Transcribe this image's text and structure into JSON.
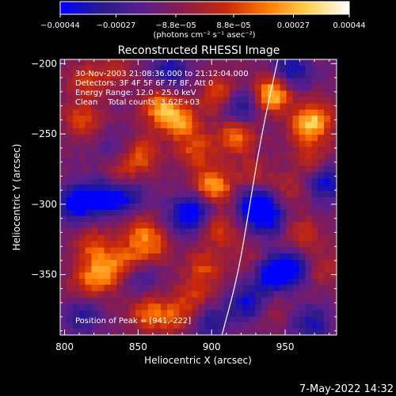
{
  "chart_data": {
    "type": "heatmap",
    "title": "Reconstructed RHESSI Image",
    "xlabel": "Heliocentric X (arcsec)",
    "ylabel": "Heliocentric Y (arcsec)",
    "xlim": [
      797,
      985
    ],
    "ylim": [
      -393,
      -197
    ],
    "xticks": [
      {
        "value": 800,
        "label": "800"
      },
      {
        "value": 850,
        "label": "850"
      },
      {
        "value": 900,
        "label": "900"
      },
      {
        "value": 950,
        "label": "950"
      }
    ],
    "yticks": [
      {
        "value": -200,
        "label": "−200"
      },
      {
        "value": -250,
        "label": "−250"
      },
      {
        "value": -300,
        "label": "−300"
      },
      {
        "value": -350,
        "label": "−350"
      }
    ],
    "colorbar": {
      "range": [
        -0.00044,
        0.00044
      ],
      "ticks": [
        {
          "value": -0.00044,
          "label": "−0.00044"
        },
        {
          "value": -0.00027,
          "label": "−0.00027"
        },
        {
          "value": -8.8e-05,
          "label": "−8.8e−05"
        },
        {
          "value": 8.8e-05,
          "label": "8.8e−05"
        },
        {
          "value": 0.00027,
          "label": "0.00027"
        },
        {
          "value": 0.00044,
          "label": "0.00044"
        }
      ],
      "unit_label": "(photons cm⁻² s⁻¹ asec⁻²)",
      "colors": [
        "#0000ff",
        "#2a1a8c",
        "#5a1e8c",
        "#8c1c4a",
        "#c8280a",
        "#ff7800",
        "#ffd250",
        "#ffffff"
      ]
    },
    "annotations": [
      "30-Nov-2003 21:08:36.000 to 21:12:04.000",
      "Detectors: 3F 4F 5F 6F 7F 8F, Att 0",
      "Energy Range: 12.0 - 25.0 keV",
      "Clean    Total counts: 3.62E+03"
    ],
    "peak_label": "Position of Peak = [941,-222]",
    "peak": {
      "x": 941,
      "y": -222
    },
    "grid": false,
    "limb_curve": [
      [
        907,
        -393
      ],
      [
        918,
        -350
      ],
      [
        926,
        -300
      ],
      [
        934,
        -250
      ],
      [
        945,
        -197
      ]
    ],
    "bright_sources": [
      {
        "x": 900,
        "y": -288,
        "v": 0.00044
      },
      {
        "x": 941,
        "y": -222,
        "v": 0.00044
      },
      {
        "x": 866,
        "y": -232,
        "v": 0.00035
      },
      {
        "x": 880,
        "y": -242,
        "v": 0.0003
      },
      {
        "x": 917,
        "y": -252,
        "v": 0.0003
      },
      {
        "x": 906,
        "y": -222,
        "v": 0.00025
      },
      {
        "x": 852,
        "y": -265,
        "v": 0.00025
      },
      {
        "x": 812,
        "y": -240,
        "v": 0.00022
      },
      {
        "x": 815,
        "y": -212,
        "v": 0.0002
      },
      {
        "x": 828,
        "y": -348,
        "v": 0.0003
      },
      {
        "x": 845,
        "y": -340,
        "v": 0.00025
      },
      {
        "x": 852,
        "y": -320,
        "v": 0.00022
      },
      {
        "x": 862,
        "y": -330,
        "v": 0.00018
      },
      {
        "x": 820,
        "y": -330,
        "v": 0.00022
      },
      {
        "x": 815,
        "y": -355,
        "v": 0.00018
      },
      {
        "x": 895,
        "y": -345,
        "v": 0.0002
      },
      {
        "x": 888,
        "y": -365,
        "v": 0.00018
      },
      {
        "x": 905,
        "y": -318,
        "v": 0.0002
      },
      {
        "x": 857,
        "y": -378,
        "v": 0.00025
      },
      {
        "x": 874,
        "y": -380,
        "v": 0.0002
      },
      {
        "x": 965,
        "y": -245,
        "v": 0.00028
      },
      {
        "x": 972,
        "y": -238,
        "v": 0.00022
      },
      {
        "x": 968,
        "y": -268,
        "v": 0.00015
      },
      {
        "x": 962,
        "y": -322,
        "v": 0.00018
      },
      {
        "x": 975,
        "y": -345,
        "v": 0.00015
      },
      {
        "x": 952,
        "y": -290,
        "v": 0.00012
      },
      {
        "x": 890,
        "y": -262,
        "v": 0.00022
      },
      {
        "x": 928,
        "y": -280,
        "v": 0.00015
      },
      {
        "x": 838,
        "y": -278,
        "v": 0.00015
      },
      {
        "x": 835,
        "y": -205,
        "v": 0.00012
      },
      {
        "x": 925,
        "y": -338,
        "v": 0.0001
      },
      {
        "x": 940,
        "y": -375,
        "v": 0.0001
      }
    ],
    "dim_regions": [
      {
        "x": 808,
        "y": -300,
        "v": -0.00035
      },
      {
        "x": 825,
        "y": -295,
        "v": -0.0003
      },
      {
        "x": 842,
        "y": -295,
        "v": -0.00025
      },
      {
        "x": 882,
        "y": -310,
        "v": -0.00028
      },
      {
        "x": 892,
        "y": -300,
        "v": -0.00025
      },
      {
        "x": 920,
        "y": -230,
        "v": -0.0003
      },
      {
        "x": 930,
        "y": -300,
        "v": -0.00035
      },
      {
        "x": 938,
        "y": -310,
        "v": -0.0003
      },
      {
        "x": 942,
        "y": -350,
        "v": -0.00035
      },
      {
        "x": 955,
        "y": -345,
        "v": -0.0003
      },
      {
        "x": 925,
        "y": -370,
        "v": -0.0003
      },
      {
        "x": 978,
        "y": -285,
        "v": -0.00028
      },
      {
        "x": 955,
        "y": -205,
        "v": -0.00028
      },
      {
        "x": 968,
        "y": -385,
        "v": -0.00025
      },
      {
        "x": 850,
        "y": -350,
        "v": -0.0002
      },
      {
        "x": 872,
        "y": -205,
        "v": -0.00025
      },
      {
        "x": 812,
        "y": -380,
        "v": -0.0002
      },
      {
        "x": 900,
        "y": -385,
        "v": -0.00022
      },
      {
        "x": 835,
        "y": -260,
        "v": -0.00012
      }
    ]
  },
  "footer": {
    "timestamp": "7-May-2022 14:32"
  }
}
